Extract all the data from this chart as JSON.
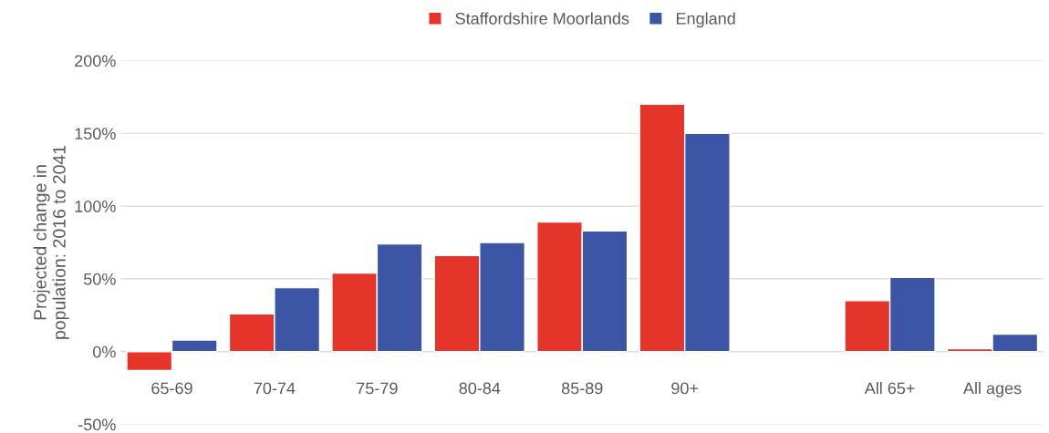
{
  "chart_data": {
    "type": "bar",
    "categories": [
      "65-69",
      "70-74",
      "75-79",
      "80-84",
      "85-89",
      "90+",
      null,
      "All 65+",
      "All ages"
    ],
    "series": [
      {
        "name": "Staffordshire Moorlands",
        "color": "#e5352b",
        "values": [
          -13,
          26,
          54,
          66,
          89,
          170,
          null,
          35,
          2
        ]
      },
      {
        "name": "England",
        "color": "#3c56a5",
        "values": [
          8,
          44,
          74,
          75,
          83,
          150,
          null,
          51,
          12
        ]
      }
    ],
    "ylabel": "Projected change in\npopulation: 2016 to 2041",
    "ylim": [
      -50,
      200
    ],
    "yticks": [
      {
        "value": -50,
        "label": "-50%"
      },
      {
        "value": 0,
        "label": "0%"
      },
      {
        "value": 50,
        "label": "50%"
      },
      {
        "value": 100,
        "label": "100%"
      },
      {
        "value": 150,
        "label": "150%"
      },
      {
        "value": 200,
        "label": "200%"
      }
    ],
    "grid": "y",
    "legend": "top"
  }
}
